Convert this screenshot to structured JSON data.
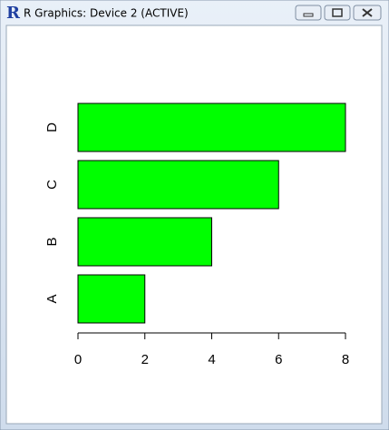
{
  "window": {
    "icon": "R",
    "title": "R Graphics: Device 2 (ACTIVE)"
  },
  "chart_data": {
    "type": "bar",
    "orientation": "horizontal",
    "categories": [
      "A",
      "B",
      "C",
      "D"
    ],
    "values": [
      2,
      4,
      6,
      8
    ],
    "color": "#00ff00",
    "xlim": [
      0,
      8
    ],
    "xticks": [
      0,
      2,
      4,
      6,
      8
    ],
    "grid": false
  }
}
